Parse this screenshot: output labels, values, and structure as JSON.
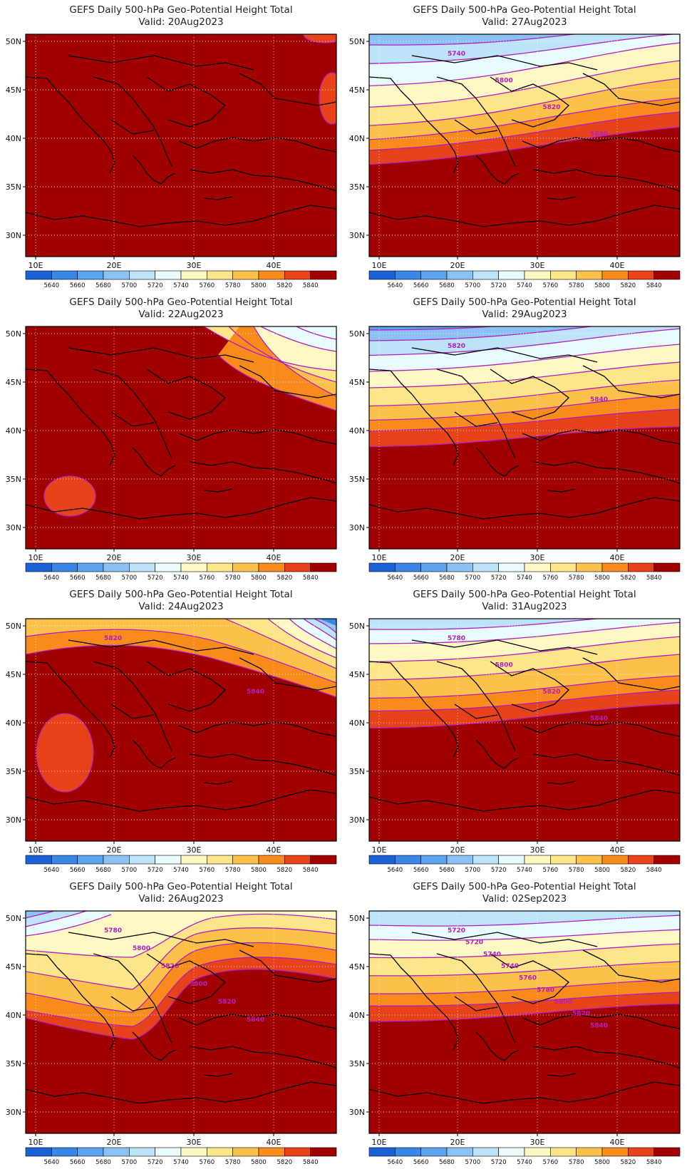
{
  "figure_type": "grid of filled contour maps",
  "colorbar": {
    "labels": [
      "5640",
      "5660",
      "5680",
      "5700",
      "5720",
      "5740",
      "5760",
      "5780",
      "5800",
      "5820",
      "5840"
    ],
    "colors": [
      "#1a62d6",
      "#3a86e6",
      "#5da3ee",
      "#8cc1f3",
      "#bde3f8",
      "#e8fbfd",
      "#fdf8c4",
      "#fde58a",
      "#fcc14a",
      "#f98b1d",
      "#e8421b",
      "#a00000"
    ]
  },
  "axes": {
    "lon_labels": [
      "10E",
      "20E",
      "30E",
      "40E"
    ],
    "lat_labels": [
      "50N",
      "45N",
      "40N",
      "35N",
      "30N"
    ]
  },
  "contour_color": "#b020c0",
  "panels": [
    {
      "title": "GEFS Daily 500-hPa Geo-Potential Height Total",
      "valid": "Valid: 20Aug2023",
      "contour_labels": []
    },
    {
      "title": "GEFS Daily 500-hPa Geo-Potential Height Total",
      "valid": "Valid: 27Aug2023",
      "contour_labels": [
        "5740",
        "5800",
        "5820",
        "5840"
      ]
    },
    {
      "title": "GEFS Daily 500-hPa Geo-Potential Height Total",
      "valid": "Valid: 22Aug2023",
      "contour_labels": []
    },
    {
      "title": "GEFS Daily 500-hPa Geo-Potential Height Total",
      "valid": "Valid: 29Aug2023",
      "contour_labels": [
        "5820",
        "5840"
      ]
    },
    {
      "title": "GEFS Daily 500-hPa Geo-Potential Height Total",
      "valid": "Valid: 24Aug2023",
      "contour_labels": [
        "5820",
        "5840"
      ]
    },
    {
      "title": "GEFS Daily 500-hPa Geo-Potential Height Total",
      "valid": "Valid: 31Aug2023",
      "contour_labels": [
        "5780",
        "5800",
        "5820",
        "5840"
      ]
    },
    {
      "title": "GEFS Daily 500-hPa Geo-Potential Height Total",
      "valid": "Valid: 26Aug2023",
      "contour_labels": [
        "5780",
        "5800",
        "5820",
        "5800",
        "5820",
        "5840"
      ]
    },
    {
      "title": "GEFS Daily 500-hPa Geo-Potential Height Total",
      "valid": "Valid: 02Sep2023",
      "contour_labels": [
        "5720",
        "5720",
        "5740",
        "5740",
        "5760",
        "5780",
        "5800",
        "5820",
        "5840"
      ]
    }
  ]
}
